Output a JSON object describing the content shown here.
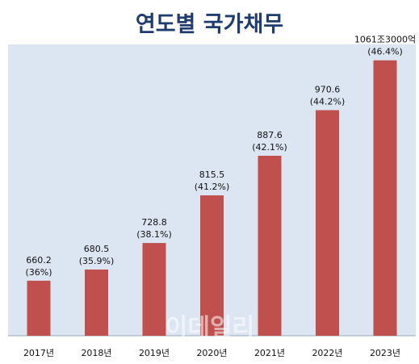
{
  "chart_data": {
    "type": "bar",
    "title": "연도별 국가채무",
    "categories": [
      "2017년",
      "2018년",
      "2019년",
      "2020년",
      "2021년",
      "2022년",
      "2023년"
    ],
    "values": [
      660.2,
      680.5,
      728.8,
      815.5,
      887.6,
      970.6,
      1061.3
    ],
    "value_labels": [
      "660.2",
      "680.5",
      "728.8",
      "815.5",
      "887.6",
      "970.6",
      "1061조3000억"
    ],
    "ratio_labels": [
      "(36%)",
      "(35.9%)",
      "(38.1%)",
      "(41.2%)",
      "(42.1%)",
      "(44.2%)",
      "(46.4%)"
    ],
    "ylim": [
      560,
      1080
    ],
    "grid": false,
    "bar_color": "#c0504d",
    "background_color": "#dce6f2"
  },
  "watermark": "이데일리"
}
